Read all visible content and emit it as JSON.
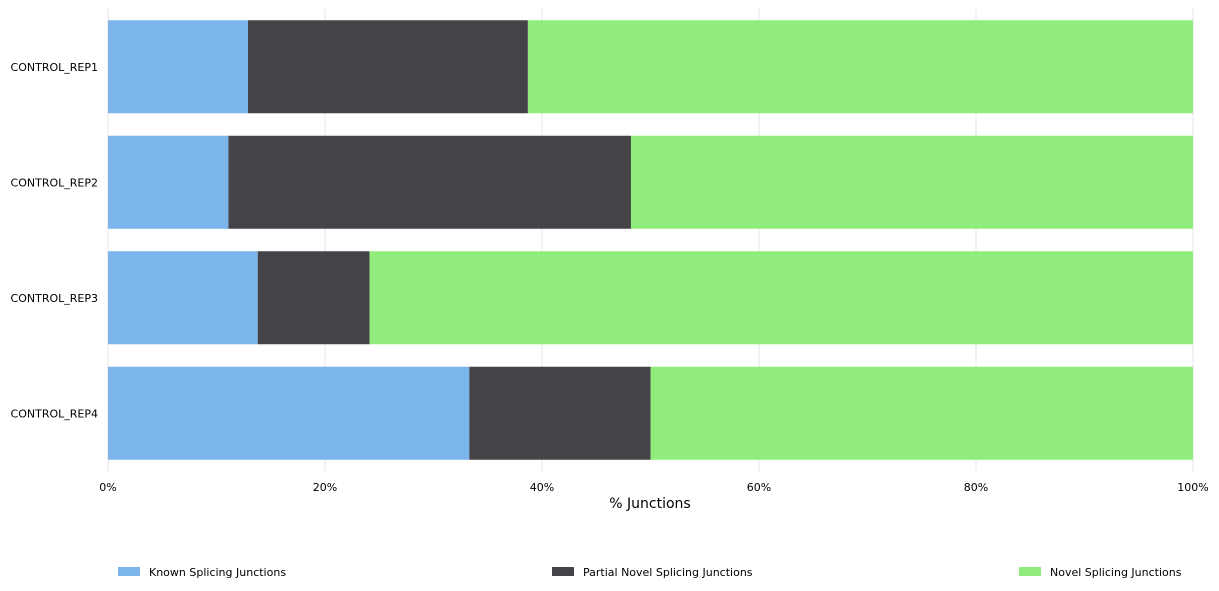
{
  "chart_data": {
    "type": "bar",
    "orientation": "horizontal",
    "stacked": true,
    "categories": [
      "CONTROL_REP1",
      "CONTROL_REP2",
      "CONTROL_REP3",
      "CONTROL_REP4"
    ],
    "series": [
      {
        "name": "Known Splicing Junctions",
        "color": "#7cb5ec",
        "values": [
          12.9,
          11.1,
          13.8,
          33.3
        ]
      },
      {
        "name": "Partial Novel Splicing Junctions",
        "color": "#434348",
        "values": [
          25.8,
          37.1,
          10.3,
          16.7
        ]
      },
      {
        "name": "Novel Splicing Junctions",
        "color": "#90ed7d",
        "values": [
          61.3,
          51.8,
          75.9,
          50.0
        ]
      }
    ],
    "xlabel": "% Junctions",
    "ylabel": "",
    "xlim": [
      0,
      100
    ],
    "x_ticks": [
      "0%",
      "20%",
      "40%",
      "60%",
      "80%",
      "100%"
    ],
    "grid": true,
    "legend_position": "bottom"
  }
}
